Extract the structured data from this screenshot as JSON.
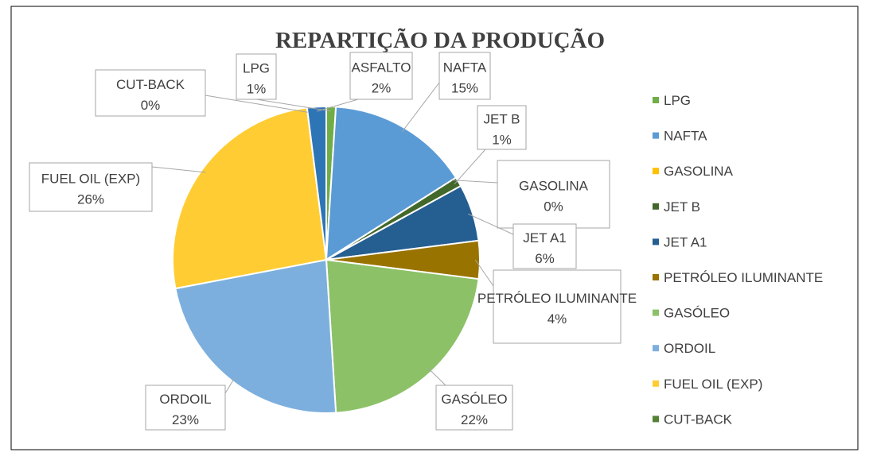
{
  "chart_data": {
    "type": "pie",
    "title": "REPARTIÇÃO DA PRODUÇÃO",
    "categories": [
      "LPG",
      "NAFTA",
      "GASOLINA",
      "JET B",
      "JET A1",
      "PETRÓLEO ILUMINANTE",
      "GASÓLEO",
      "ORDOIL",
      "FUEL OIL (EXP)",
      "CUT-BACK",
      "ASFALTO"
    ],
    "values": [
      1,
      15,
      0,
      1,
      6,
      4,
      22,
      23,
      26,
      0,
      2
    ],
    "value_labels": [
      "1%",
      "15%",
      "0%",
      "1%",
      "6%",
      "4%",
      "22%",
      "23%",
      "26%",
      "0%",
      "2%"
    ],
    "colors": [
      "#70ad47",
      "#5b9bd5",
      "#ffc000",
      "#43682b",
      "#255e91",
      "#997300",
      "#8cc168",
      "#7cafdd",
      "#ffcd33",
      "#548235",
      "#2e75b6"
    ],
    "legend": "right"
  }
}
